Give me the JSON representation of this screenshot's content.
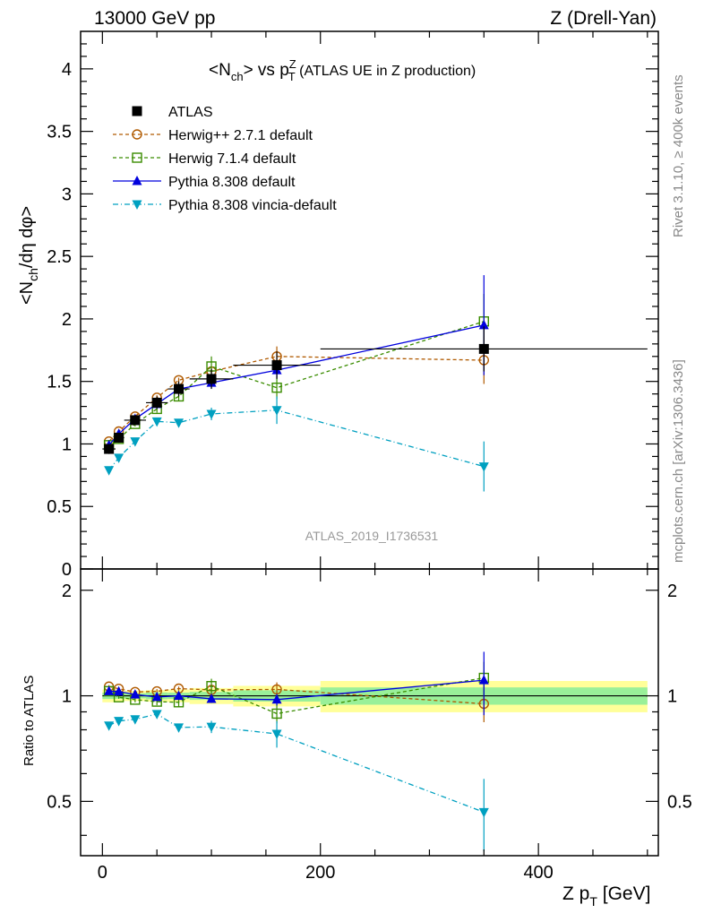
{
  "header": {
    "left": "13000 GeV pp",
    "right": "Z (Drell-Yan)"
  },
  "side": {
    "rivet": "Rivet 3.1.10, ≥ 400k events",
    "mcplots": "mcplots.cern.ch [arXiv:1306.3436]"
  },
  "chart_data": {
    "type": "scatter",
    "title": "<Nch> vs pTZ (ATLAS UE in Z production)",
    "title_parts": {
      "a": "<N",
      "b": "ch",
      "c": "> vs p",
      "d": "Z",
      "e": "T",
      "f": " (ATLAS UE in Z production)"
    },
    "ylabel": "<Nch/dη dφ>",
    "ylabel_parts": {
      "a": "<N",
      "b": "ch",
      "c": "/dη dφ>"
    },
    "xlabel": "Z pT [GeV]",
    "xlabel_parts": {
      "a": "Z p",
      "b": "T",
      "c": " [GeV]"
    },
    "ratio_ylabel": "Ratio to ATLAS",
    "watermark": "ATLAS_2019_I1736531",
    "xlim": [
      -20,
      510
    ],
    "ylim": [
      0,
      4.3
    ],
    "ratio_ylim": [
      0.35,
      2.3
    ],
    "x_ticks": [
      "0",
      "200",
      "400"
    ],
    "y_ticks": [
      "0",
      "0.5",
      "1",
      "1.5",
      "2",
      "2.5",
      "3",
      "3.5",
      "4"
    ],
    "ratio_ticks": [
      "0.5",
      "1",
      "2"
    ],
    "ratio_ticks_right": [
      "0.5",
      "1",
      "2"
    ],
    "legend_position": "top-left",
    "data": {
      "name": "ATLAS",
      "x": [
        6,
        15,
        30,
        50,
        70,
        100,
        160,
        350
      ],
      "y": [
        0.96,
        1.05,
        1.19,
        1.33,
        1.44,
        1.52,
        1.63,
        1.76
      ],
      "bins": [
        [
          0,
          12
        ],
        [
          12,
          20
        ],
        [
          20,
          40
        ],
        [
          40,
          60
        ],
        [
          60,
          80
        ],
        [
          80,
          120
        ],
        [
          120,
          200
        ],
        [
          200,
          500
        ]
      ],
      "stat_err": [
        0.02,
        0.02,
        0.02,
        0.03,
        0.03,
        0.04,
        0.06,
        0.1
      ],
      "total_err": [
        0.04,
        0.04,
        0.04,
        0.05,
        0.06,
        0.08,
        0.11,
        0.18
      ]
    },
    "series": [
      {
        "name": "Herwig++ 2.7.1 default",
        "color": "#b05a00",
        "marker": "open-circle",
        "dash": "4,3",
        "x": [
          6,
          15,
          30,
          50,
          70,
          100,
          160,
          350
        ],
        "y": [
          1.02,
          1.1,
          1.22,
          1.37,
          1.51,
          1.58,
          1.7,
          1.67
        ],
        "err": [
          0.01,
          0.01,
          0.01,
          0.02,
          0.02,
          0.03,
          0.08,
          0.19
        ]
      },
      {
        "name": "Herwig 7.1.4 default",
        "color": "#3a8c00",
        "marker": "open-square",
        "dash": "4,3",
        "x": [
          6,
          15,
          30,
          50,
          70,
          100,
          160,
          350
        ],
        "y": [
          0.99,
          1.04,
          1.16,
          1.28,
          1.38,
          1.62,
          1.45,
          1.98
        ],
        "err": [
          0.01,
          0.01,
          0.02,
          0.03,
          0.04,
          0.08,
          0.09,
          0.22
        ]
      },
      {
        "name": "Pythia 8.308 default",
        "color": "#0000dd",
        "marker": "filled-triangle-up",
        "dash": "",
        "x": [
          6,
          15,
          30,
          50,
          70,
          100,
          160,
          350
        ],
        "y": [
          0.99,
          1.08,
          1.2,
          1.32,
          1.44,
          1.49,
          1.59,
          1.95
        ],
        "err": [
          0.01,
          0.01,
          0.01,
          0.02,
          0.03,
          0.04,
          0.06,
          0.4
        ]
      },
      {
        "name": "Pythia 8.308 vincia-default",
        "color": "#00a0c0",
        "marker": "filled-triangle-down",
        "dash": "6,3,1,3",
        "x": [
          6,
          15,
          30,
          50,
          70,
          100,
          160,
          350
        ],
        "y": [
          0.79,
          0.89,
          1.02,
          1.18,
          1.17,
          1.24,
          1.27,
          0.82
        ],
        "err": [
          0.01,
          0.01,
          0.01,
          0.02,
          0.03,
          0.05,
          0.11,
          0.2
        ]
      }
    ]
  }
}
